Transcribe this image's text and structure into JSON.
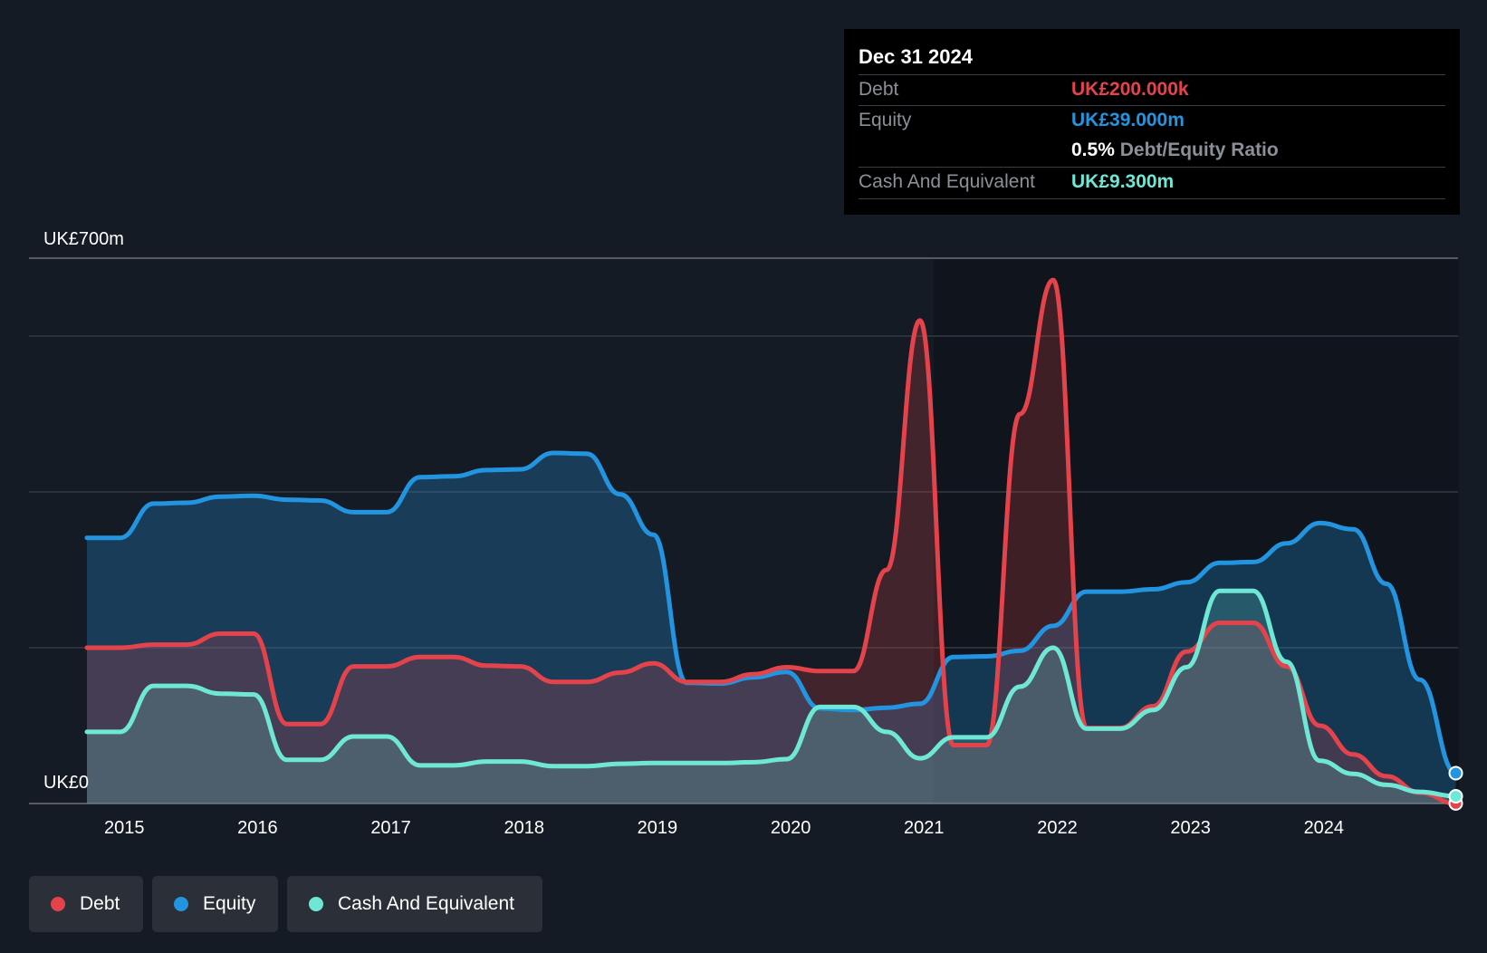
{
  "tooltip": {
    "date": "Dec 31 2024",
    "debt_label": "Debt",
    "debt_value": "UK£200.000k",
    "equity_label": "Equity",
    "equity_value": "UK£39.000m",
    "ratio_value": "0.5%",
    "ratio_label": "Debt/Equity Ratio",
    "cash_label": "Cash And Equivalent",
    "cash_value": "UK£9.300m"
  },
  "legend": [
    {
      "label": "Debt",
      "color": "#e5434b"
    },
    {
      "label": "Equity",
      "color": "#2394df"
    },
    {
      "label": "Cash And Equivalent",
      "color": "#6ee8d4"
    }
  ],
  "chart_data": {
    "type": "area",
    "x_tick_labels": [
      "2015",
      "2016",
      "2017",
      "2018",
      "2019",
      "2020",
      "2021",
      "2022",
      "2023",
      "2024"
    ],
    "y_tick_labels": [
      "UK£0",
      "UK£700m"
    ],
    "ylim": [
      0,
      700
    ],
    "xlim": [
      2014.72,
      2025.0
    ],
    "grid": true,
    "gridlines_m": [
      0,
      200,
      400,
      600,
      700
    ],
    "series": [
      {
        "name": "Equity",
        "color": "#2394df",
        "points": [
          [
            2014.72,
            341
          ],
          [
            2014.97,
            341
          ],
          [
            2015.22,
            385
          ],
          [
            2015.47,
            386
          ],
          [
            2015.72,
            394
          ],
          [
            2015.97,
            395
          ],
          [
            2016.22,
            390
          ],
          [
            2016.47,
            389
          ],
          [
            2016.72,
            374
          ],
          [
            2016.97,
            374
          ],
          [
            2017.22,
            419
          ],
          [
            2017.47,
            420
          ],
          [
            2017.72,
            428
          ],
          [
            2017.97,
            429
          ],
          [
            2018.22,
            450
          ],
          [
            2018.47,
            449
          ],
          [
            2018.72,
            397
          ],
          [
            2018.97,
            345
          ],
          [
            2019.22,
            155
          ],
          [
            2019.47,
            154
          ],
          [
            2019.72,
            162
          ],
          [
            2019.97,
            169
          ],
          [
            2020.22,
            122
          ],
          [
            2020.47,
            120
          ],
          [
            2020.72,
            123
          ],
          [
            2020.97,
            128
          ],
          [
            2021.22,
            188
          ],
          [
            2021.47,
            189
          ],
          [
            2021.72,
            196
          ],
          [
            2021.97,
            228
          ],
          [
            2022.22,
            272
          ],
          [
            2022.47,
            272
          ],
          [
            2022.72,
            275
          ],
          [
            2022.97,
            284
          ],
          [
            2023.22,
            309
          ],
          [
            2023.47,
            310
          ],
          [
            2023.72,
            334
          ],
          [
            2023.97,
            360
          ],
          [
            2024.22,
            352
          ],
          [
            2024.47,
            282
          ],
          [
            2024.72,
            159
          ],
          [
            2024.99,
            39
          ]
        ]
      },
      {
        "name": "Debt",
        "color": "#e5434b",
        "points": [
          [
            2014.72,
            200
          ],
          [
            2014.97,
            200
          ],
          [
            2015.22,
            204
          ],
          [
            2015.47,
            204
          ],
          [
            2015.72,
            218
          ],
          [
            2015.97,
            218
          ],
          [
            2016.22,
            102
          ],
          [
            2016.47,
            102
          ],
          [
            2016.72,
            176
          ],
          [
            2016.97,
            176
          ],
          [
            2017.22,
            188
          ],
          [
            2017.47,
            188
          ],
          [
            2017.72,
            177
          ],
          [
            2017.97,
            176
          ],
          [
            2018.22,
            156
          ],
          [
            2018.47,
            156
          ],
          [
            2018.72,
            168
          ],
          [
            2018.97,
            180
          ],
          [
            2019.22,
            156
          ],
          [
            2019.47,
            156
          ],
          [
            2019.72,
            166
          ],
          [
            2019.97,
            175
          ],
          [
            2020.22,
            170
          ],
          [
            2020.47,
            170
          ],
          [
            2020.72,
            300
          ],
          [
            2020.97,
            620
          ],
          [
            2021.22,
            75
          ],
          [
            2021.47,
            75
          ],
          [
            2021.72,
            500
          ],
          [
            2021.97,
            672
          ],
          [
            2022.22,
            97
          ],
          [
            2022.47,
            97
          ],
          [
            2022.72,
            125
          ],
          [
            2022.97,
            195
          ],
          [
            2023.22,
            232
          ],
          [
            2023.47,
            232
          ],
          [
            2023.72,
            176
          ],
          [
            2023.97,
            100
          ],
          [
            2024.22,
            63
          ],
          [
            2024.47,
            35
          ],
          [
            2024.72,
            14
          ],
          [
            2024.99,
            0.2
          ]
        ]
      },
      {
        "name": "Cash And Equivalent",
        "color": "#6ee8d4",
        "points": [
          [
            2014.72,
            92
          ],
          [
            2014.97,
            92
          ],
          [
            2015.22,
            151
          ],
          [
            2015.47,
            151
          ],
          [
            2015.72,
            141
          ],
          [
            2015.97,
            140
          ],
          [
            2016.22,
            56
          ],
          [
            2016.47,
            56
          ],
          [
            2016.72,
            86
          ],
          [
            2016.97,
            86
          ],
          [
            2017.22,
            49
          ],
          [
            2017.47,
            49
          ],
          [
            2017.72,
            54
          ],
          [
            2017.97,
            54
          ],
          [
            2018.22,
            48
          ],
          [
            2018.47,
            48
          ],
          [
            2018.72,
            51
          ],
          [
            2018.97,
            52
          ],
          [
            2019.22,
            52
          ],
          [
            2019.47,
            52
          ],
          [
            2019.72,
            53
          ],
          [
            2019.97,
            57
          ],
          [
            2020.22,
            124
          ],
          [
            2020.47,
            124
          ],
          [
            2020.72,
            92
          ],
          [
            2020.97,
            58
          ],
          [
            2021.22,
            85
          ],
          [
            2021.47,
            85
          ],
          [
            2021.72,
            150
          ],
          [
            2021.97,
            200
          ],
          [
            2022.22,
            96
          ],
          [
            2022.47,
            96
          ],
          [
            2022.72,
            120
          ],
          [
            2022.97,
            175
          ],
          [
            2023.22,
            273
          ],
          [
            2023.47,
            273
          ],
          [
            2023.72,
            182
          ],
          [
            2023.97,
            55
          ],
          [
            2024.22,
            38
          ],
          [
            2024.47,
            24
          ],
          [
            2024.72,
            15
          ],
          [
            2024.99,
            9.3
          ]
        ]
      }
    ]
  }
}
